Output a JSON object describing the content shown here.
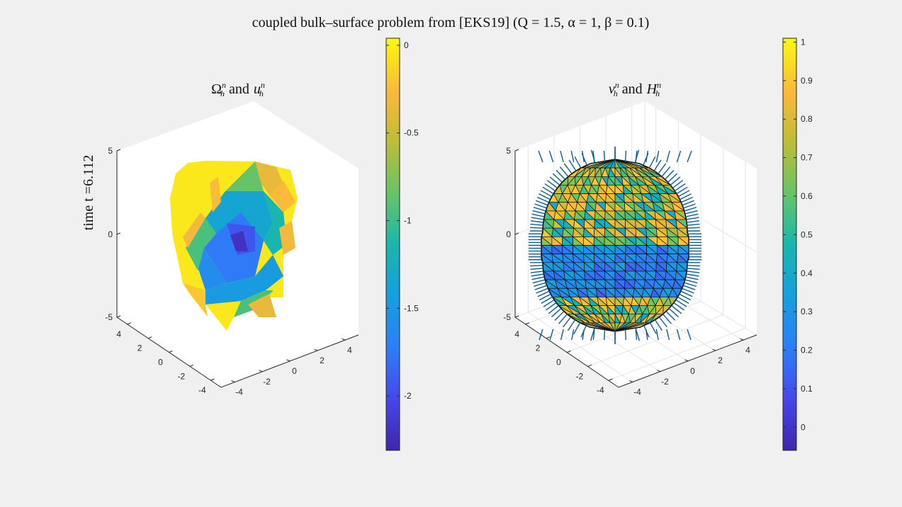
{
  "figure": {
    "suptitle": "coupled bulk–surface problem from [EKS19] (Q = 1.5, α = 1, β = 0.1)",
    "background": "#f0f0f0",
    "colormap": "parula"
  },
  "chart_data": [
    {
      "type": "3d-surface",
      "title": "Ωₕⁿ and uₕⁿ",
      "title_parts": {
        "a": "Ω",
        "a_sub": "h",
        "a_sup": "n",
        "mid": "and",
        "b": "u",
        "b_sub": "h",
        "b_sup": "n"
      },
      "zlabel": "time t =6.112",
      "x_ticks": [
        "-4",
        "-2",
        "0",
        "2",
        "4"
      ],
      "y_ticks": [
        "4",
        "2",
        "0",
        "-2",
        "-4"
      ],
      "z_ticks": [
        "5",
        "0",
        "-5"
      ],
      "xlim": [
        -4.5,
        4.5
      ],
      "ylim": [
        -4.5,
        4.5
      ],
      "zlim": [
        -5,
        5
      ],
      "grid": false,
      "colorbar": {
        "ticks": [
          "0",
          "-0.5",
          "-1",
          "-1.5",
          "-2"
        ],
        "tick_values": [
          0,
          -0.5,
          -1,
          -1.5,
          -2
        ],
        "limits": [
          -2.31,
          0.04
        ]
      }
    },
    {
      "type": "3d-surface",
      "title": "νₕⁿ and Hₕⁿ",
      "title_parts": {
        "a": "ν",
        "a_sub": "h",
        "a_sup": "n",
        "mid": "and",
        "b": "H",
        "b_sub": "h",
        "b_sup": "n"
      },
      "x_ticks": [
        "-4",
        "-2",
        "0",
        "2",
        "4"
      ],
      "y_ticks": [
        "4",
        "2",
        "0",
        "-2",
        "-4"
      ],
      "z_ticks": [
        "5",
        "0",
        "-5"
      ],
      "xlim": [
        -4.5,
        4.5
      ],
      "ylim": [
        -4.5,
        4.5
      ],
      "zlim": [
        -5,
        5
      ],
      "grid": true,
      "quiver": "outward normals",
      "quiver_color": "#0e5d8f",
      "colorbar": {
        "ticks": [
          "1",
          "0.9",
          "0.8",
          "0.7",
          "0.6",
          "0.5",
          "0.4",
          "0.3",
          "0.2",
          "0.1",
          "0"
        ],
        "tick_values": [
          1,
          0.9,
          0.8,
          0.7,
          0.6,
          0.5,
          0.4,
          0.3,
          0.2,
          0.1,
          0
        ],
        "limits": [
          -0.06,
          1.01
        ]
      }
    }
  ]
}
